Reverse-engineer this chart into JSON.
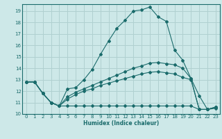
{
  "xlabel": "Humidex (Indice chaleur)",
  "bg_color": "#cde8e8",
  "line_color": "#1a6b6b",
  "grid_color": "#b0d0d0",
  "xlim": [
    -0.5,
    23.5
  ],
  "ylim": [
    10,
    19.6
  ],
  "xticks": [
    0,
    1,
    2,
    3,
    4,
    5,
    6,
    7,
    8,
    9,
    10,
    11,
    12,
    13,
    14,
    15,
    16,
    17,
    18,
    19,
    20,
    21,
    22,
    23
  ],
  "yticks": [
    10,
    11,
    12,
    13,
    14,
    15,
    16,
    17,
    18,
    19
  ],
  "series": [
    {
      "x": [
        0,
        1,
        2,
        3,
        4,
        5,
        6,
        7,
        8,
        9,
        10,
        11,
        12,
        13,
        14,
        15,
        16,
        17,
        18,
        19,
        20,
        21,
        22,
        23
      ],
      "y": [
        12.8,
        12.8,
        11.8,
        11.0,
        10.7,
        12.2,
        12.3,
        13.0,
        13.9,
        15.2,
        16.4,
        17.5,
        18.2,
        19.0,
        19.1,
        19.35,
        18.5,
        18.1,
        15.6,
        14.7,
        13.1,
        11.6,
        10.4,
        10.5
      ]
    },
    {
      "x": [
        0,
        1,
        2,
        3,
        4,
        5,
        6,
        7,
        8,
        9,
        10,
        11,
        12,
        13,
        14,
        15,
        16,
        17,
        18,
        19,
        20,
        21,
        22,
        23
      ],
      "y": [
        12.8,
        12.8,
        11.8,
        11.0,
        10.7,
        11.5,
        11.9,
        12.2,
        12.5,
        12.8,
        13.1,
        13.4,
        13.7,
        14.0,
        14.2,
        14.45,
        14.5,
        14.4,
        14.3,
        14.0,
        13.1,
        10.4,
        10.4,
        10.6
      ]
    },
    {
      "x": [
        0,
        1,
        2,
        3,
        4,
        5,
        6,
        7,
        8,
        9,
        10,
        11,
        12,
        13,
        14,
        15,
        16,
        17,
        18,
        19,
        20,
        21,
        22,
        23
      ],
      "y": [
        12.8,
        12.8,
        11.8,
        11.0,
        10.7,
        11.3,
        11.7,
        12.0,
        12.2,
        12.5,
        12.7,
        12.9,
        13.1,
        13.3,
        13.5,
        13.65,
        13.7,
        13.6,
        13.5,
        13.2,
        13.0,
        10.4,
        10.4,
        10.6
      ]
    },
    {
      "x": [
        0,
        1,
        2,
        3,
        4,
        5,
        6,
        7,
        8,
        9,
        10,
        11,
        12,
        13,
        14,
        15,
        16,
        17,
        18,
        19,
        20,
        21,
        22,
        23
      ],
      "y": [
        12.8,
        12.8,
        11.8,
        11.0,
        10.7,
        10.7,
        10.7,
        10.7,
        10.7,
        10.7,
        10.7,
        10.7,
        10.7,
        10.7,
        10.7,
        10.7,
        10.7,
        10.7,
        10.7,
        10.7,
        10.7,
        10.4,
        10.4,
        10.6
      ]
    }
  ]
}
